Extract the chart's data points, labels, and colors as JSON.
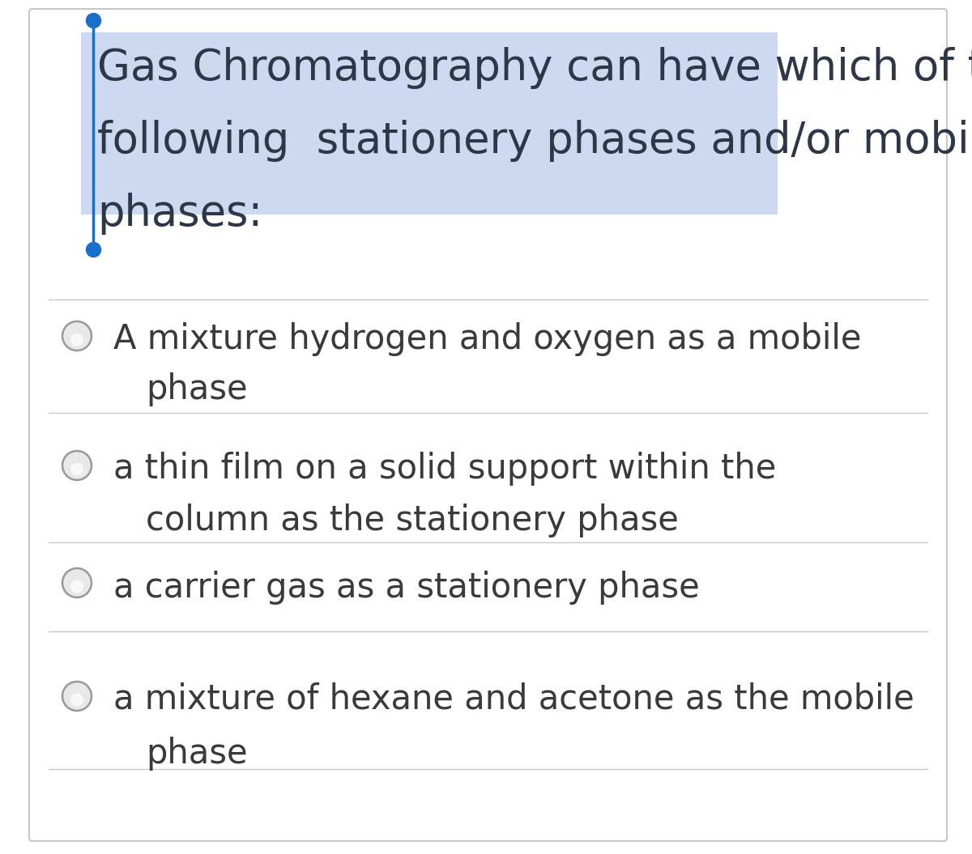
{
  "question_line1": "Gas Chromatography can have which of the",
  "question_line2": "following  stationery phases and/or mobile",
  "question_line3": "phases:",
  "question_highlight_color": "#ccd9f0",
  "question_text_color": "#2d3748",
  "option_text_color": "#3a3a3a",
  "background_color": "#ffffff",
  "border_color": "#c8c8c8",
  "divider_color": "#c8c8c8",
  "radio_border_color": "#999999",
  "radio_fill_color": "#e8e8e8",
  "cursor_color": "#1a6ecc",
  "font_size_question": 38,
  "font_size_option": 30,
  "options_line1": [
    "A mixture hydrogen and oxygen as a mobile",
    "a thin film on a solid support within the",
    "a carrier gas as a stationery phase",
    "a mixture of hexane and acetone as the mobile"
  ],
  "options_line2": [
    "phase",
    "column as the stationery phase",
    null,
    "phase"
  ]
}
